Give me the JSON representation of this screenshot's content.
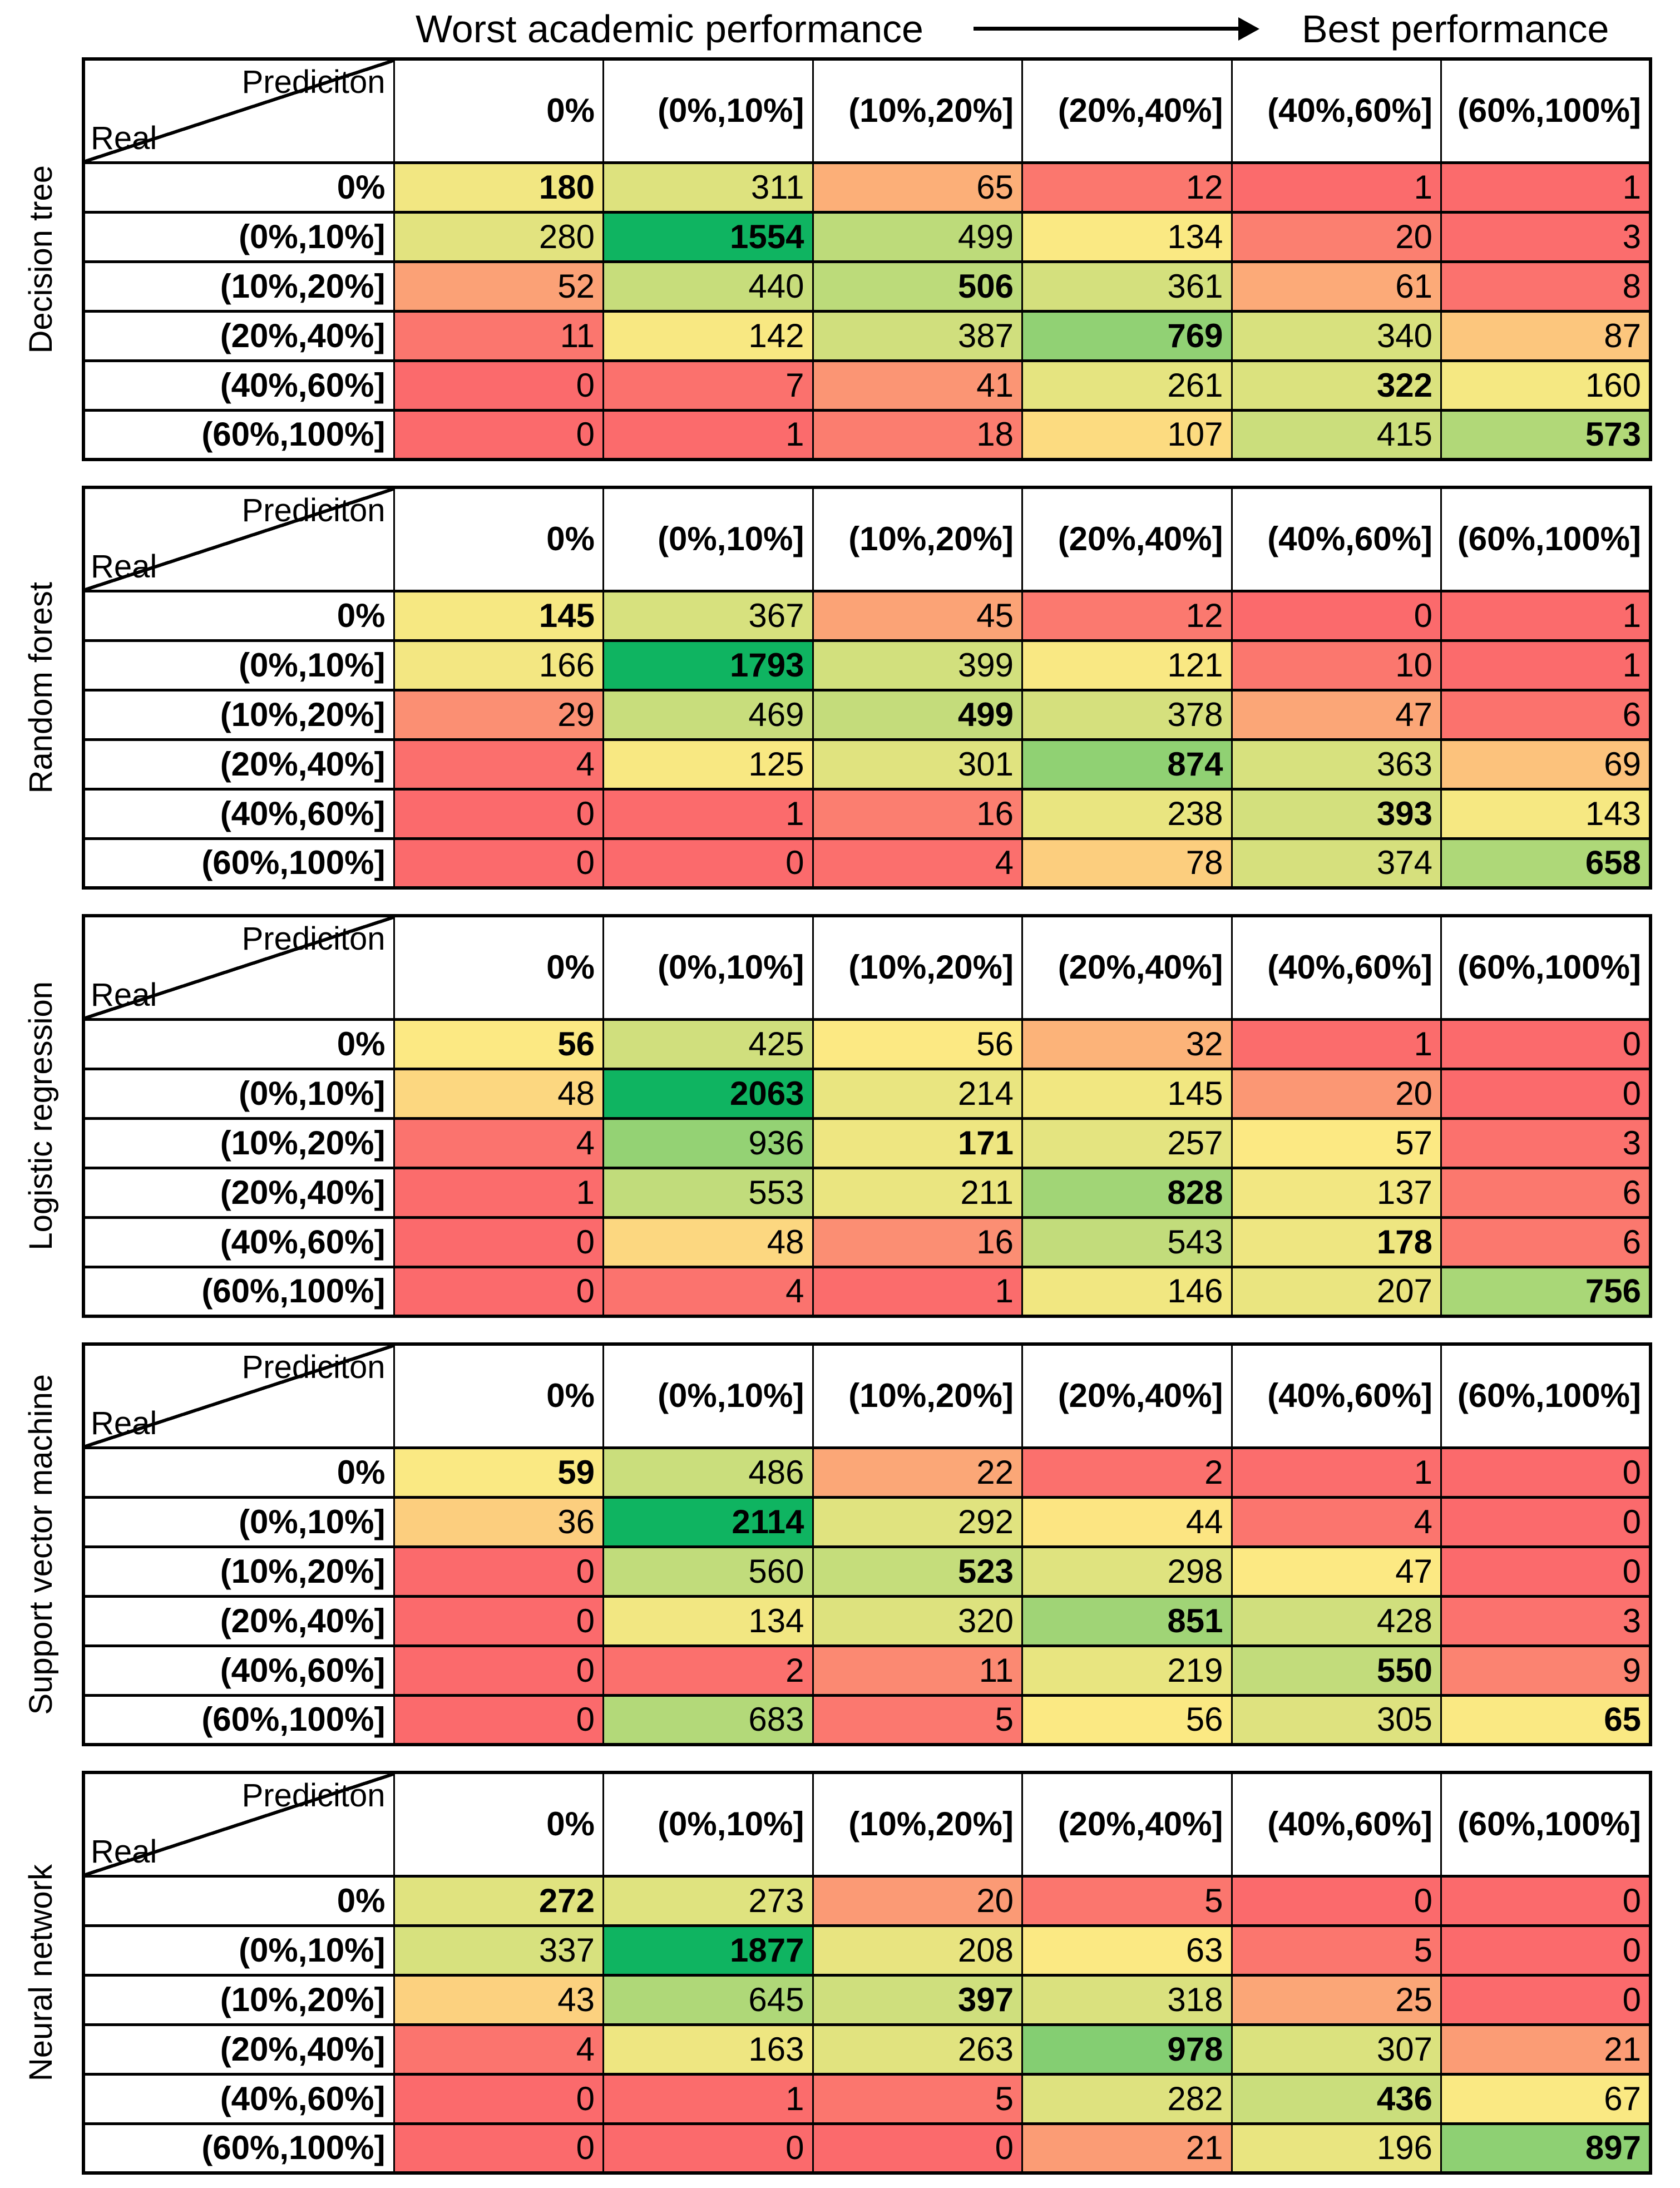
{
  "page": {
    "title_left": "Worst academic performance",
    "title_right": "Best performance",
    "title_arrow_icon": "arrow-right"
  },
  "matrix_header": {
    "prediction_label": "Prediciton",
    "real_label": "Real"
  },
  "bins": [
    "0%",
    "(0%,10%]",
    "(10%,20%]",
    "(20%,40%]",
    "(40%,60%]",
    "(60%,100%]"
  ],
  "colors": {
    "scale_min": "#FB6A6C",
    "scale_mid": "#FCE983",
    "scale_max": "#0FB461",
    "scale_mid_rule": "50th-percentile-per-table",
    "border": "#000000",
    "text": "#000000",
    "background": "#FFFFFF"
  },
  "chart_data": [
    {
      "type": "heatmap",
      "model": "Decision tree",
      "row_axis": "Real",
      "col_axis": "Prediciton",
      "rows": [
        "0%",
        "(0%,10%]",
        "(10%,20%]",
        "(20%,40%]",
        "(40%,60%]",
        "(60%,100%]"
      ],
      "columns": [
        "0%",
        "(0%,10%]",
        "(10%,20%]",
        "(20%,40%]",
        "(40%,60%]",
        "(60%,100%]"
      ],
      "values": [
        [
          180,
          311,
          65,
          12,
          1,
          1
        ],
        [
          280,
          1554,
          499,
          134,
          20,
          3
        ],
        [
          52,
          440,
          506,
          361,
          61,
          8
        ],
        [
          11,
          142,
          387,
          769,
          340,
          87
        ],
        [
          0,
          7,
          41,
          261,
          322,
          160
        ],
        [
          0,
          1,
          18,
          107,
          415,
          573
        ]
      ]
    },
    {
      "type": "heatmap",
      "model": "Random forest",
      "row_axis": "Real",
      "col_axis": "Prediciton",
      "rows": [
        "0%",
        "(0%,10%]",
        "(10%,20%]",
        "(20%,40%]",
        "(40%,60%]",
        "(60%,100%]"
      ],
      "columns": [
        "0%",
        "(0%,10%]",
        "(10%,20%]",
        "(20%,40%]",
        "(40%,60%]",
        "(60%,100%]"
      ],
      "values": [
        [
          145,
          367,
          45,
          12,
          0,
          1
        ],
        [
          166,
          1793,
          399,
          121,
          10,
          1
        ],
        [
          29,
          469,
          499,
          378,
          47,
          6
        ],
        [
          4,
          125,
          301,
          874,
          363,
          69
        ],
        [
          0,
          1,
          16,
          238,
          393,
          143
        ],
        [
          0,
          0,
          4,
          78,
          374,
          658
        ]
      ]
    },
    {
      "type": "heatmap",
      "model": "Logistic regression",
      "row_axis": "Real",
      "col_axis": "Prediciton",
      "rows": [
        "0%",
        "(0%,10%]",
        "(10%,20%]",
        "(20%,40%]",
        "(40%,60%]",
        "(60%,100%]"
      ],
      "columns": [
        "0%",
        "(0%,10%]",
        "(10%,20%]",
        "(20%,40%]",
        "(40%,60%]",
        "(60%,100%]"
      ],
      "values": [
        [
          56,
          425,
          56,
          32,
          1,
          0
        ],
        [
          48,
          2063,
          214,
          145,
          20,
          0
        ],
        [
          4,
          936,
          171,
          257,
          57,
          3
        ],
        [
          1,
          553,
          211,
          828,
          137,
          6
        ],
        [
          0,
          48,
          16,
          543,
          178,
          6
        ],
        [
          0,
          4,
          1,
          146,
          207,
          756
        ]
      ]
    },
    {
      "type": "heatmap",
      "model": "Support vector machine",
      "row_axis": "Real",
      "col_axis": "Prediciton",
      "rows": [
        "0%",
        "(0%,10%]",
        "(10%,20%]",
        "(20%,40%]",
        "(40%,60%]",
        "(60%,100%]"
      ],
      "columns": [
        "0%",
        "(0%,10%]",
        "(10%,20%]",
        "(20%,40%]",
        "(40%,60%]",
        "(60%,100%]"
      ],
      "values": [
        [
          59,
          486,
          22,
          2,
          1,
          0
        ],
        [
          36,
          2114,
          292,
          44,
          4,
          0
        ],
        [
          0,
          560,
          523,
          298,
          47,
          0
        ],
        [
          0,
          134,
          320,
          851,
          428,
          3
        ],
        [
          0,
          2,
          11,
          219,
          550,
          9
        ],
        [
          0,
          683,
          5,
          56,
          305,
          65
        ]
      ]
    },
    {
      "type": "heatmap",
      "model": "Neural network",
      "row_axis": "Real",
      "col_axis": "Prediciton",
      "rows": [
        "0%",
        "(0%,10%]",
        "(10%,20%]",
        "(20%,40%]",
        "(40%,60%]",
        "(60%,100%]"
      ],
      "columns": [
        "0%",
        "(0%,10%]",
        "(10%,20%]",
        "(20%,40%]",
        "(40%,60%]",
        "(60%,100%]"
      ],
      "values": [
        [
          272,
          273,
          20,
          5,
          0,
          0
        ],
        [
          337,
          1877,
          208,
          63,
          5,
          0
        ],
        [
          43,
          645,
          397,
          318,
          25,
          0
        ],
        [
          4,
          163,
          263,
          978,
          307,
          21
        ],
        [
          0,
          1,
          5,
          282,
          436,
          67
        ],
        [
          0,
          0,
          0,
          21,
          196,
          897
        ]
      ]
    }
  ]
}
